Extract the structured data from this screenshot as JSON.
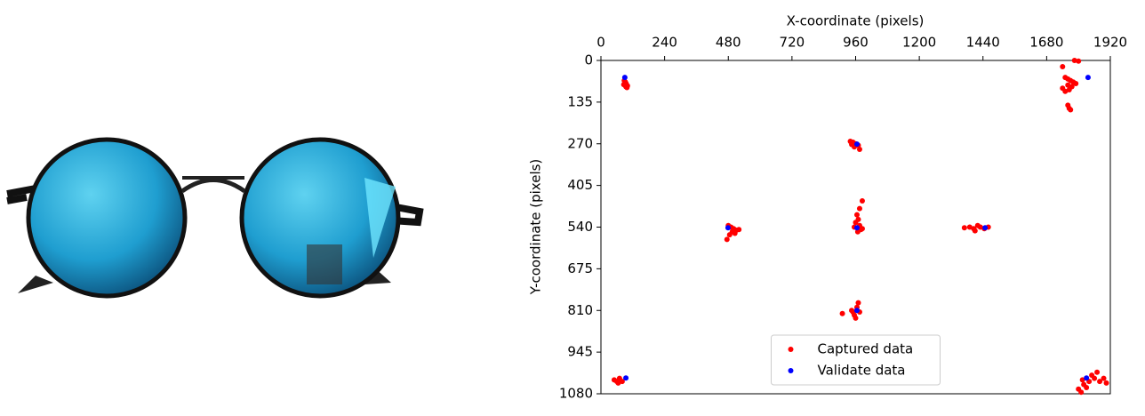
{
  "chart_data": {
    "type": "scatter",
    "xlabel": "X-coordinate (pixels)",
    "ylabel": "Y-coordinate (pixels)",
    "xlim": [
      0,
      1920
    ],
    "ylim": [
      1080,
      0
    ],
    "y_inverted": true,
    "x_axis_position": "top",
    "xticks": [
      0,
      240,
      480,
      720,
      960,
      1200,
      1440,
      1680,
      1920
    ],
    "yticks": [
      0,
      135,
      270,
      405,
      540,
      675,
      810,
      945,
      1080
    ],
    "legend": "lower center",
    "series": [
      {
        "name": "Captured data",
        "color": "#ff0000",
        "x": [
          88,
          92,
          95,
          90,
          94,
          98,
          86,
          100,
          1785,
          1800,
          1740,
          1750,
          1760,
          1770,
          1780,
          1760,
          1775,
          1790,
          1740,
          1765,
          1750,
          1760,
          1765,
          1770,
          940,
          950,
          960,
          970,
          955,
          975,
          945,
          480,
          490,
          500,
          510,
          495,
          520,
          485,
          475,
          505,
          985,
          975,
          965,
          970,
          960,
          975,
          955,
          980,
          968,
          985,
          1370,
          1390,
          1405,
          1420,
          1430,
          1445,
          1460,
          1410,
          910,
          945,
          955,
          965,
          970,
          960,
          950,
          975,
          50,
          60,
          70,
          80,
          65,
          1800,
          1810,
          1820,
          1840,
          1850,
          1860,
          1870,
          1880,
          1895,
          1830,
          1905,
          1815
        ],
        "y": [
          65,
          70,
          75,
          80,
          85,
          88,
          78,
          82,
          0,
          2,
          20,
          55,
          60,
          65,
          70,
          80,
          85,
          75,
          90,
          95,
          100,
          145,
          155,
          160,
          262,
          265,
          270,
          275,
          280,
          288,
          272,
          535,
          540,
          545,
          550,
          555,
          548,
          565,
          580,
          560,
          455,
          480,
          500,
          515,
          525,
          535,
          540,
          548,
          555,
          545,
          542,
          540,
          545,
          535,
          540,
          545,
          540,
          552,
          820,
          810,
          825,
          800,
          785,
          835,
          815,
          815,
          1035,
          1040,
          1030,
          1040,
          1045,
          1065,
          1075,
          1050,
          1040,
          1020,
          1030,
          1010,
          1040,
          1030,
          1060,
          1045,
          1035
        ]
      },
      {
        "name": "Validate data",
        "color": "#0000ff",
        "x": [
          90,
          1836,
          965,
          479,
          965,
          1448,
          965,
          94,
          1830
        ],
        "y": [
          55,
          55,
          271,
          542,
          542,
          542,
          810,
          1029,
          1029
        ]
      }
    ]
  }
}
